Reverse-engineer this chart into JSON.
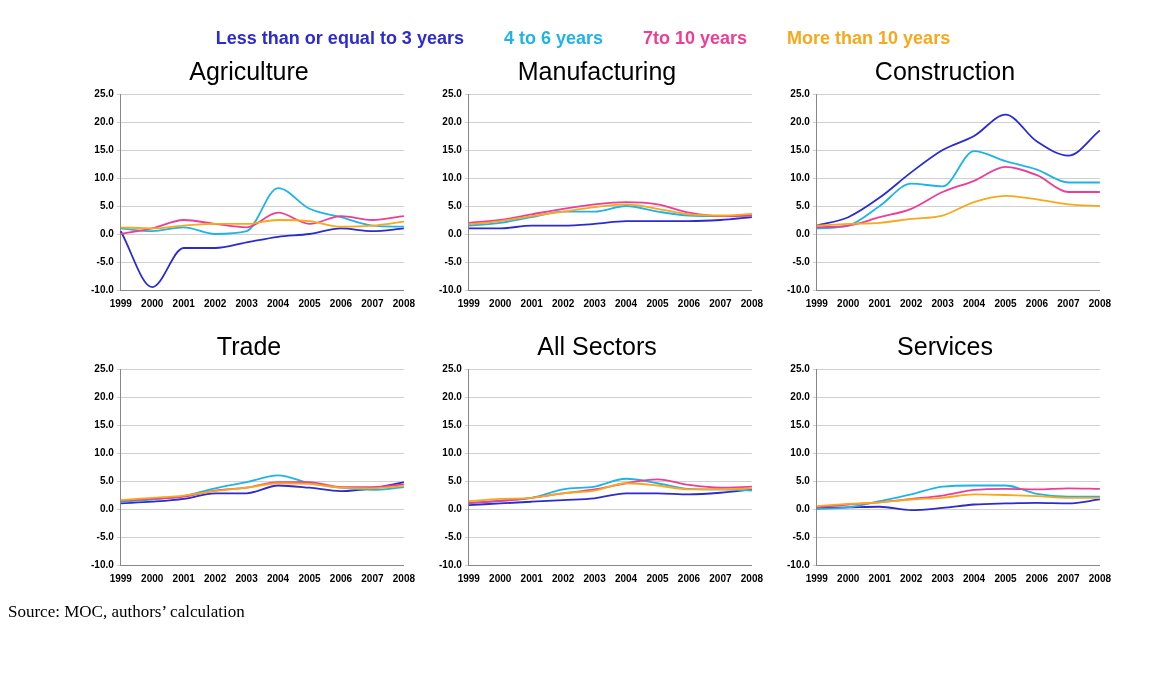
{
  "chart_data": [
    {
      "type": "line",
      "title": "Agriculture",
      "legend": "top",
      "grid": "y",
      "categories": [
        "1999",
        "2000",
        "2001",
        "2002",
        "2003",
        "2004",
        "2005",
        "2006",
        "2007",
        "2008"
      ],
      "ylim": [
        -10,
        25
      ],
      "yticks": [
        {
          "value": -10,
          "label": "-10.0"
        },
        {
          "value": -5,
          "label": "-5.0"
        },
        {
          "value": 0,
          "label": "0.0"
        },
        {
          "value": 5,
          "label": "5.0"
        },
        {
          "value": 10,
          "label": "10.0"
        },
        {
          "value": 15,
          "label": "15.0"
        },
        {
          "value": 20,
          "label": "20.0"
        },
        {
          "value": 25,
          "label": "25.0"
        }
      ],
      "series": [
        {
          "name": "Less than or equal to 3 years",
          "color": "#2b2bd0",
          "values": [
            0.5,
            -9.5,
            -2.5,
            -2.5,
            -1.5,
            -0.5,
            0,
            1,
            0.5,
            1
          ]
        },
        {
          "name": "4 to 6 years",
          "color": "#1eb4e6",
          "values": [
            1,
            0.5,
            1.2,
            0,
            0.5,
            8.2,
            4.5,
            3,
            1.5,
            1.3
          ]
        },
        {
          "name": "7to 10 years",
          "color": "#ee3d96",
          "values": [
            0,
            1,
            2.5,
            1.8,
            1.2,
            3.8,
            1.8,
            3.2,
            2.5,
            3.2
          ]
        },
        {
          "name": "More than 10 years",
          "color": "#f7a81b",
          "values": [
            1.2,
            1,
            1.5,
            1.8,
            1.8,
            2.5,
            2.3,
            1.3,
            1.5,
            2.2
          ]
        }
      ]
    },
    {
      "type": "line",
      "title": "Manufacturing",
      "grid": "y",
      "categories": [
        "1999",
        "2000",
        "2001",
        "2002",
        "2003",
        "2004",
        "2005",
        "2006",
        "2007",
        "2008"
      ],
      "ylim": [
        -10,
        25
      ],
      "yticks": [
        {
          "value": -10,
          "label": "-10.0"
        },
        {
          "value": -5,
          "label": "-5.0"
        },
        {
          "value": 0,
          "label": "0.0"
        },
        {
          "value": 5,
          "label": "5.0"
        },
        {
          "value": 10,
          "label": "10.0"
        },
        {
          "value": 15,
          "label": "15.0"
        },
        {
          "value": 20,
          "label": "20.0"
        },
        {
          "value": 25,
          "label": "25.0"
        }
      ],
      "series": [
        {
          "color": "#2b2bd0",
          "values": [
            1,
            1,
            1.5,
            1.5,
            1.8,
            2.3,
            2.3,
            2.3,
            2.5,
            3
          ]
        },
        {
          "color": "#1eb4e6",
          "values": [
            1.5,
            2,
            3,
            4,
            4,
            5,
            4,
            3.3,
            3.2,
            3.3
          ]
        },
        {
          "color": "#ee3d96",
          "values": [
            2,
            2.5,
            3.5,
            4.5,
            5.3,
            5.7,
            5.3,
            3.8,
            3.2,
            3.3
          ]
        },
        {
          "color": "#f7a81b",
          "values": [
            1.7,
            2.3,
            3.2,
            4,
            4.8,
            5.3,
            4.5,
            3.5,
            3.3,
            3.6
          ]
        }
      ]
    },
    {
      "type": "line",
      "title": "Construction",
      "grid": "y",
      "categories": [
        "1999",
        "2000",
        "2001",
        "2002",
        "2003",
        "2004",
        "2005",
        "2006",
        "2007",
        "2008"
      ],
      "ylim": [
        -10,
        25
      ],
      "yticks": [
        {
          "value": -10,
          "label": "-10.0"
        },
        {
          "value": -5,
          "label": "-5.0"
        },
        {
          "value": 0,
          "label": "0.0"
        },
        {
          "value": 5,
          "label": "5.0"
        },
        {
          "value": 10,
          "label": "10.0"
        },
        {
          "value": 15,
          "label": "15.0"
        },
        {
          "value": 20,
          "label": "20.0"
        },
        {
          "value": 25,
          "label": "25.0"
        }
      ],
      "series": [
        {
          "color": "#2b2bd0",
          "values": [
            1.5,
            3,
            6.5,
            11,
            15,
            17.5,
            21.3,
            16.5,
            14,
            18.5
          ]
        },
        {
          "color": "#1eb4e6",
          "values": [
            1,
            1.5,
            5,
            9,
            8.5,
            14.8,
            13,
            11.5,
            9.2,
            9.2
          ]
        },
        {
          "color": "#ee3d96",
          "values": [
            1.2,
            1.5,
            3,
            4.5,
            7.5,
            9.5,
            12,
            10.5,
            7.5,
            7.5
          ]
        },
        {
          "color": "#f7a81b",
          "values": [
            1.5,
            1.8,
            2,
            2.7,
            3.3,
            5.7,
            6.8,
            6.2,
            5.3,
            5
          ]
        }
      ]
    },
    {
      "type": "line",
      "title": "Trade",
      "grid": "y",
      "categories": [
        "1999",
        "2000",
        "2001",
        "2002",
        "2003",
        "2004",
        "2005",
        "2006",
        "2007",
        "2008"
      ],
      "ylim": [
        -10,
        25
      ],
      "yticks": [
        {
          "value": -10,
          "label": "-10.0"
        },
        {
          "value": -5,
          "label": "-5.0"
        },
        {
          "value": 0,
          "label": "0.0"
        },
        {
          "value": 5,
          "label": "5.0"
        },
        {
          "value": 10,
          "label": "10.0"
        },
        {
          "value": 15,
          "label": "15.0"
        },
        {
          "value": 20,
          "label": "20.0"
        },
        {
          "value": 25,
          "label": "25.0"
        }
      ],
      "series": [
        {
          "color": "#2b2bd0",
          "values": [
            1,
            1.3,
            1.8,
            2.8,
            2.8,
            4.2,
            3.8,
            3.2,
            3.7,
            4.8
          ]
        },
        {
          "color": "#1eb4e6",
          "values": [
            1.3,
            1.7,
            2.3,
            3.7,
            4.8,
            6,
            4.6,
            3.8,
            3.4,
            3.9
          ]
        },
        {
          "color": "#ee3d96",
          "values": [
            1.5,
            1.8,
            2.2,
            3.3,
            3.8,
            4.8,
            4.8,
            3.9,
            3.9,
            4.4
          ]
        },
        {
          "color": "#f7a81b",
          "values": [
            1.6,
            2,
            2.4,
            3.2,
            3.8,
            4.6,
            4.5,
            3.8,
            3.7,
            4.1
          ]
        }
      ]
    },
    {
      "type": "line",
      "title": "All Sectors",
      "grid": "y",
      "categories": [
        "1999",
        "2000",
        "2001",
        "2002",
        "2003",
        "2004",
        "2005",
        "2006",
        "2007",
        "2008"
      ],
      "ylim": [
        -10,
        25
      ],
      "yticks": [
        {
          "value": -10,
          "label": "-10.0"
        },
        {
          "value": -5,
          "label": "-5.0"
        },
        {
          "value": 0,
          "label": "0.0"
        },
        {
          "value": 5,
          "label": "5.0"
        },
        {
          "value": 10,
          "label": "10.0"
        },
        {
          "value": 15,
          "label": "15.0"
        },
        {
          "value": 20,
          "label": "20.0"
        },
        {
          "value": 25,
          "label": "25.0"
        }
      ],
      "series": [
        {
          "color": "#2b2bd0",
          "values": [
            0.7,
            1,
            1.3,
            1.6,
            1.9,
            2.8,
            2.8,
            2.6,
            2.9,
            3.5
          ]
        },
        {
          "color": "#1eb4e6",
          "values": [
            1,
            1.5,
            2,
            3.5,
            4,
            5.4,
            4.6,
            3.6,
            3.5,
            3.3
          ]
        },
        {
          "color": "#ee3d96",
          "values": [
            1.1,
            1.4,
            2,
            2.8,
            3.5,
            4.6,
            5.3,
            4.3,
            3.8,
            4
          ]
        },
        {
          "color": "#f7a81b",
          "values": [
            1.4,
            1.8,
            2,
            2.8,
            3.3,
            4.6,
            4.2,
            3.5,
            3.5,
            3.7
          ]
        }
      ]
    },
    {
      "type": "line",
      "title": "Services",
      "grid": "y",
      "categories": [
        "1999",
        "2000",
        "2001",
        "2002",
        "2003",
        "2004",
        "2005",
        "2006",
        "2007",
        "2008"
      ],
      "ylim": [
        -10,
        25
      ],
      "yticks": [
        {
          "value": -10,
          "label": "-10.0"
        },
        {
          "value": -5,
          "label": "-5.0"
        },
        {
          "value": 0,
          "label": "0.0"
        },
        {
          "value": 5,
          "label": "5.0"
        },
        {
          "value": 10,
          "label": "10.0"
        },
        {
          "value": 15,
          "label": "15.0"
        },
        {
          "value": 20,
          "label": "20.0"
        },
        {
          "value": 25,
          "label": "25.0"
        }
      ],
      "annotations": [
        "Source: MOC, authors’ calculation"
      ],
      "series": [
        {
          "color": "#2b2bd0",
          "values": [
            0.2,
            0.3,
            0.4,
            -0.2,
            0.2,
            0.8,
            1,
            1.1,
            1,
            1.7
          ]
        },
        {
          "color": "#1eb4e6",
          "values": [
            0,
            0.3,
            1.4,
            2.6,
            4,
            4.2,
            4.2,
            2.7,
            2.2,
            2.2
          ]
        },
        {
          "color": "#ee3d96",
          "values": [
            0.3,
            0.8,
            1.2,
            1.8,
            2.4,
            3.4,
            3.6,
            3.5,
            3.7,
            3.6
          ]
        },
        {
          "color": "#f7a81b",
          "values": [
            0.5,
            0.9,
            1.2,
            1.7,
            2,
            2.6,
            2.5,
            2.3,
            2,
            2
          ]
        }
      ]
    }
  ]
}
